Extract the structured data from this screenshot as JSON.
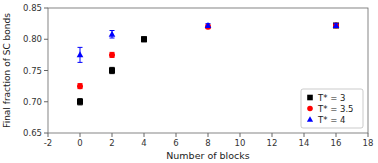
{
  "chart_data": {
    "type": "scatter",
    "title": "",
    "xlabel": "Number of blocks",
    "ylabel": "Final fraction of SC bonds",
    "xlim": [
      -2,
      18
    ],
    "ylim": [
      0.65,
      0.85
    ],
    "xticks": [
      -2,
      0,
      2,
      4,
      6,
      8,
      10,
      12,
      14,
      16,
      18
    ],
    "yticks": [
      0.65,
      {
        "value": 0.7,
        "label": "0.70"
      },
      0.75,
      {
        "value": 0.8,
        "label": "0.80"
      },
      0.85
    ],
    "grid": false,
    "legend": "lower right",
    "series": [
      {
        "name": "T* = 3",
        "color": "black",
        "marker": "square",
        "x": [
          0,
          2,
          4,
          16
        ],
        "values": [
          0.7,
          0.75,
          0.8,
          0.822
        ],
        "yerr": [
          0.005,
          0.005,
          0.004,
          0.003
        ]
      },
      {
        "name": "T* = 3.5",
        "color": "red",
        "marker": "circle",
        "x": [
          0,
          2,
          8,
          16
        ],
        "values": [
          0.725,
          0.775,
          0.82,
          0.822
        ],
        "yerr": [
          0.004,
          0.004,
          0.003,
          0.003
        ]
      },
      {
        "name": "T* = 4",
        "color": "blue",
        "marker": "triangle",
        "x": [
          0,
          2,
          8,
          16
        ],
        "values": [
          0.775,
          0.808,
          0.822,
          0.822
        ],
        "yerr": [
          0.012,
          0.006,
          0.003,
          0.003
        ]
      }
    ]
  }
}
